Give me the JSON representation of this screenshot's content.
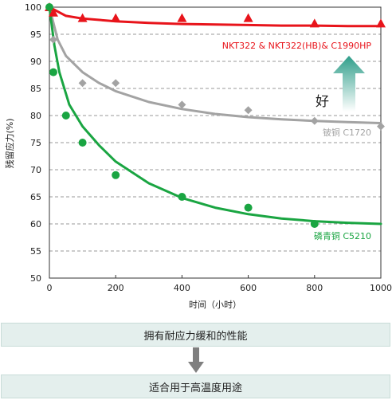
{
  "chart_data": {
    "type": "scatter",
    "xlabel": "时间（小时）",
    "ylabel": "残留应力(%)",
    "xlim": [
      0,
      1000
    ],
    "ylim": [
      50,
      100
    ],
    "xticks": [
      0,
      200,
      400,
      600,
      800,
      1000
    ],
    "yticks": [
      50,
      55,
      60,
      65,
      70,
      75,
      80,
      85,
      90,
      95,
      100
    ],
    "grid": "horizontal dashed",
    "series": [
      {
        "name": "NKT322 & NKT322(HB)& C1990HP",
        "color": "#e8141b",
        "marker": "triangle",
        "points": [
          [
            0,
            100
          ],
          [
            12,
            99
          ],
          [
            100,
            98
          ],
          [
            200,
            98
          ],
          [
            400,
            98
          ],
          [
            600,
            98
          ],
          [
            800,
            97
          ],
          [
            1000,
            97
          ]
        ],
        "curve": [
          [
            0,
            100
          ],
          [
            50,
            98.4
          ],
          [
            100,
            97.9
          ],
          [
            200,
            97.4
          ],
          [
            300,
            97.1
          ],
          [
            400,
            96.9
          ],
          [
            500,
            96.8
          ],
          [
            600,
            96.7
          ],
          [
            700,
            96.6
          ],
          [
            800,
            96.6
          ],
          [
            900,
            96.5
          ],
          [
            1000,
            96.5
          ]
        ]
      },
      {
        "name": "铍铜  C1720",
        "color": "#a3a3a3",
        "marker": "diamond",
        "points": [
          [
            0,
            100
          ],
          [
            12,
            94
          ],
          [
            100,
            86
          ],
          [
            200,
            86
          ],
          [
            400,
            82
          ],
          [
            600,
            81
          ],
          [
            800,
            79
          ],
          [
            1000,
            78
          ]
        ],
        "curve": [
          [
            0,
            100
          ],
          [
            25,
            94
          ],
          [
            50,
            91
          ],
          [
            100,
            88
          ],
          [
            150,
            86
          ],
          [
            200,
            84.5
          ],
          [
            300,
            82.5
          ],
          [
            400,
            81.2
          ],
          [
            500,
            80.3
          ],
          [
            600,
            79.7
          ],
          [
            700,
            79.3
          ],
          [
            800,
            79
          ],
          [
            900,
            78.8
          ],
          [
            1000,
            78.6
          ]
        ]
      },
      {
        "name": "磷青铜  C5210",
        "color": "#1aa542",
        "marker": "circle",
        "points": [
          [
            0,
            100
          ],
          [
            12,
            88
          ],
          [
            50,
            80
          ],
          [
            100,
            75
          ],
          [
            200,
            69
          ],
          [
            400,
            65
          ],
          [
            600,
            63
          ],
          [
            800,
            60
          ]
        ],
        "curve": [
          [
            0,
            100
          ],
          [
            15,
            93
          ],
          [
            30,
            88
          ],
          [
            60,
            82
          ],
          [
            100,
            78
          ],
          [
            150,
            74.5
          ],
          [
            200,
            71.5
          ],
          [
            300,
            67.5
          ],
          [
            400,
            64.8
          ],
          [
            500,
            63
          ],
          [
            600,
            61.8
          ],
          [
            700,
            61
          ],
          [
            800,
            60.5
          ],
          [
            900,
            60.2
          ],
          [
            1000,
            60
          ]
        ]
      }
    ],
    "annotation": "好",
    "annotation_arrow_colors": [
      "#2f9e8a",
      "#ffffff"
    ]
  },
  "boxes": {
    "top_text": "拥有耐应力缓和的性能",
    "bottom_text": "适合用于高温度用途",
    "fill": "#e4efed",
    "arrow_color": "#7f7f7f"
  }
}
